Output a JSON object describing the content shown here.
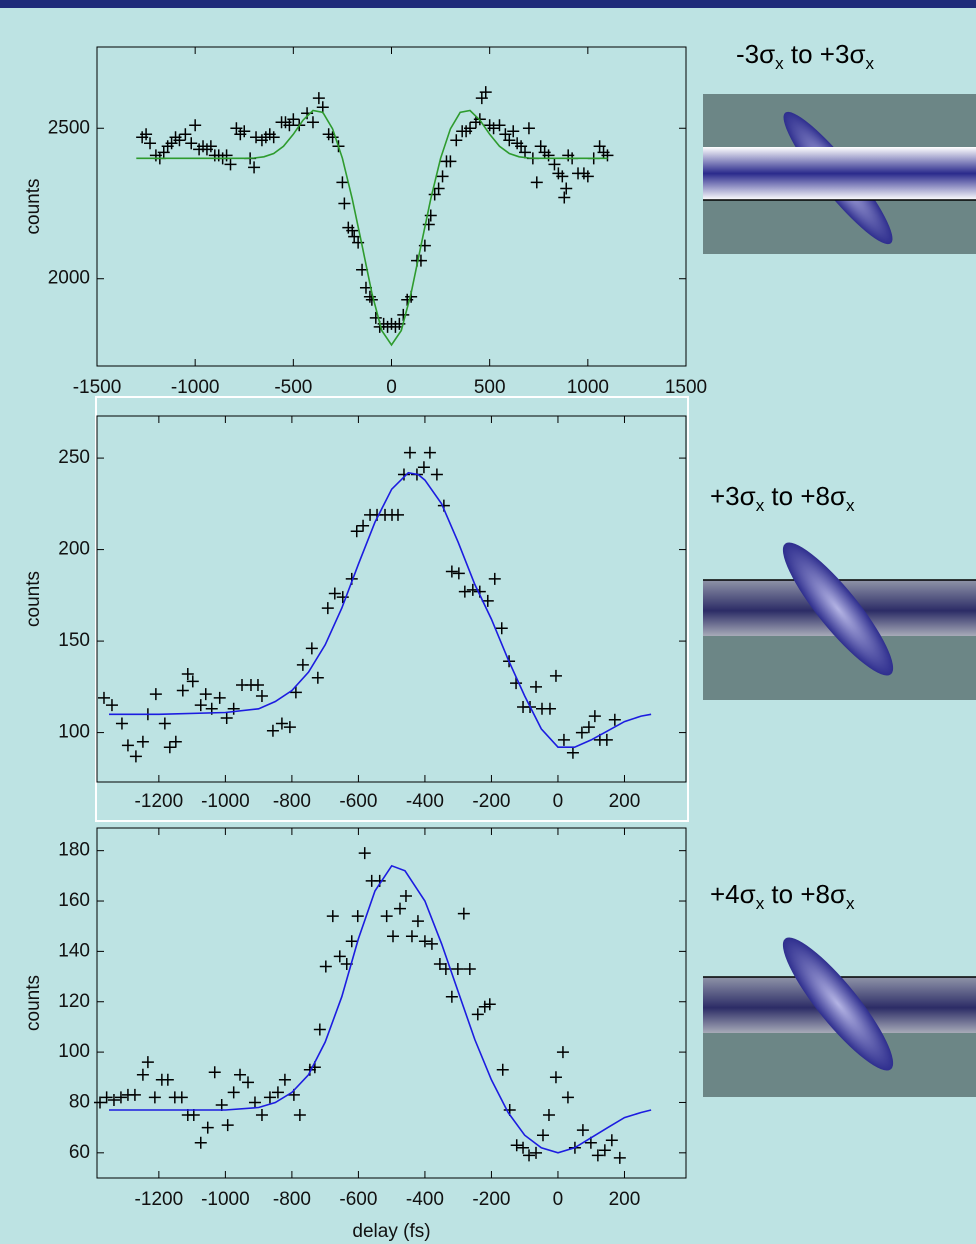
{
  "chart_data": [
    {
      "type": "scatter",
      "ylabel": "counts",
      "xlim": [
        -1500,
        1500
      ],
      "ylim": [
        1710,
        2770
      ],
      "xticks": [
        -1500,
        -1000,
        -500,
        0,
        500,
        1000,
        1500
      ],
      "yticks": [
        2000,
        2500
      ],
      "series": [
        {
          "marker": "+",
          "color": "#000000",
          "x": [
            -1270,
            -1250,
            -1230,
            -1200,
            -1180,
            -1160,
            -1140,
            -1120,
            -1100,
            -1080,
            -1050,
            -1020,
            -1000,
            -980,
            -960,
            -940,
            -920,
            -900,
            -880,
            -860,
            -840,
            -820,
            -790,
            -770,
            -750,
            -720,
            -700,
            -690,
            -660,
            -640,
            -620,
            -600,
            -560,
            -540,
            -520,
            -500,
            -470,
            -430,
            -400,
            -370,
            -350,
            -320,
            -300,
            -270,
            -250,
            -240,
            -220,
            -200,
            -190,
            -170,
            -150,
            -130,
            -110,
            -100,
            -80,
            -60,
            -40,
            -20,
            0,
            20,
            40,
            60,
            80,
            100,
            130,
            150,
            170,
            190,
            200,
            220,
            240,
            260,
            280,
            300,
            330,
            360,
            380,
            400,
            430,
            450,
            460,
            480,
            500,
            520,
            550,
            580,
            600,
            620,
            640,
            660,
            680,
            700,
            720,
            740,
            760,
            780,
            800,
            830,
            850,
            870,
            880,
            890,
            900,
            920,
            950,
            980,
            1000,
            1030,
            1060,
            1080,
            1100
          ],
          "values": [
            2470,
            2480,
            2450,
            2410,
            2400,
            2420,
            2440,
            2450,
            2470,
            2460,
            2480,
            2450,
            2510,
            2430,
            2440,
            2430,
            2440,
            2410,
            2410,
            2400,
            2410,
            2380,
            2500,
            2480,
            2490,
            2400,
            2370,
            2470,
            2460,
            2470,
            2480,
            2470,
            2520,
            2520,
            2510,
            2530,
            2510,
            2550,
            2520,
            2600,
            2570,
            2480,
            2470,
            2440,
            2320,
            2250,
            2170,
            2160,
            2140,
            2120,
            2030,
            1970,
            1940,
            1930,
            1870,
            1840,
            1850,
            1840,
            1850,
            1840,
            1850,
            1880,
            1930,
            1940,
            2060,
            2060,
            2110,
            2180,
            2210,
            2280,
            2300,
            2340,
            2390,
            2390,
            2460,
            2490,
            2490,
            2500,
            2520,
            2530,
            2600,
            2620,
            2510,
            2500,
            2510,
            2480,
            2460,
            2490,
            2450,
            2440,
            2420,
            2500,
            2400,
            2320,
            2440,
            2420,
            2410,
            2380,
            2350,
            2340,
            2270,
            2300,
            2410,
            2400,
            2350,
            2350,
            2340,
            2400,
            2440,
            2420,
            2410
          ]
        },
        {
          "line": true,
          "color": "#2e9b2e",
          "x": [
            -1300,
            -1250,
            -1200,
            -1150,
            -1100,
            -1050,
            -1000,
            -950,
            -900,
            -850,
            -800,
            -750,
            -700,
            -650,
            -600,
            -550,
            -500,
            -450,
            -400,
            -350,
            -300,
            -250,
            -200,
            -150,
            -100,
            -50,
            0,
            50,
            100,
            150,
            200,
            250,
            300,
            350,
            400,
            450,
            500,
            550,
            600,
            650,
            700,
            750,
            800,
            850,
            900,
            950,
            1000,
            1050,
            1100
          ],
          "values": [
            2400,
            2400,
            2400,
            2400,
            2400,
            2400,
            2400,
            2400,
            2400,
            2400,
            2400,
            2400,
            2401,
            2405,
            2416,
            2440,
            2480,
            2527,
            2559,
            2553,
            2498,
            2400,
            2266,
            2110,
            1952,
            1828,
            1780,
            1828,
            1952,
            2110,
            2266,
            2400,
            2498,
            2553,
            2559,
            2527,
            2480,
            2440,
            2416,
            2405,
            2401,
            2400,
            2400,
            2400,
            2400,
            2400,
            2400,
            2400,
            2400
          ]
        }
      ]
    },
    {
      "type": "scatter",
      "ylabel": "counts",
      "xlim": [
        -1386,
        385
      ],
      "ylim": [
        73,
        273
      ],
      "xticks": [
        -1200,
        -1000,
        -800,
        -600,
        -400,
        -200,
        0,
        200
      ],
      "yticks": [
        100,
        150,
        200,
        250
      ],
      "series": [
        {
          "marker": "+",
          "color": "#000000",
          "x": [
            -1365,
            -1341,
            -1311,
            -1293,
            -1269,
            -1248,
            -1233,
            -1209,
            -1182,
            -1167,
            -1149,
            -1128,
            -1113,
            -1098,
            -1074,
            -1059,
            -1041,
            -1017,
            -996,
            -975,
            -950,
            -923,
            -902,
            -890,
            -857,
            -830,
            -806,
            -788,
            -767,
            -740,
            -722,
            -692,
            -671,
            -647,
            -620,
            -605,
            -586,
            -565,
            -544,
            -520,
            -499,
            -481,
            -463,
            -445,
            -424,
            -403,
            -385,
            -364,
            -343,
            -319,
            -298,
            -280,
            -256,
            -235,
            -211,
            -190,
            -169,
            -147,
            -126,
            -105,
            -84,
            -66,
            -48,
            -24,
            -6,
            18,
            45,
            72,
            93,
            111,
            126,
            147,
            171
          ],
          "values": [
            119,
            115,
            105,
            93,
            87,
            95,
            110,
            121,
            105,
            92,
            95,
            123,
            132,
            128,
            115,
            121,
            113,
            119,
            108,
            113,
            126,
            126,
            126,
            120,
            101,
            105,
            103,
            122,
            137,
            146,
            130,
            168,
            176,
            174,
            184,
            210,
            213,
            219,
            219,
            219,
            219,
            219,
            241,
            253,
            241,
            245,
            253,
            241,
            224,
            188,
            187,
            177,
            178,
            177,
            172,
            184,
            157,
            139,
            127,
            114,
            114,
            125,
            113,
            113,
            131,
            96,
            89,
            100,
            103,
            109,
            96,
            96,
            107
          ]
        },
        {
          "line": true,
          "color": "#1c1ce0",
          "x": [
            -1350,
            -1200,
            -1000,
            -900,
            -850,
            -800,
            -750,
            -700,
            -650,
            -600,
            -550,
            -500,
            -450,
            -420,
            -400,
            -350,
            -300,
            -250,
            -200,
            -150,
            -100,
            -50,
            0,
            50,
            100,
            150,
            200,
            250,
            280
          ],
          "values": [
            110,
            110,
            111,
            113,
            117,
            123,
            133,
            148,
            168,
            192,
            215,
            233,
            242,
            241,
            238,
            225,
            204,
            181,
            162,
            140,
            120,
            102,
            92,
            92,
            96,
            101,
            106,
            109,
            110
          ]
        }
      ]
    },
    {
      "type": "scatter",
      "ylabel": "counts",
      "xlabel": "delay (fs)",
      "xlim": [
        -1386,
        385
      ],
      "ylim": [
        50,
        189
      ],
      "xticks": [
        -1200,
        -1000,
        -800,
        -600,
        -400,
        -200,
        0,
        200
      ],
      "yticks": [
        60,
        80,
        100,
        120,
        140,
        160,
        180
      ],
      "series": [
        {
          "marker": "+",
          "color": "#000000",
          "x": [
            -1377,
            -1357,
            -1335,
            -1314,
            -1293,
            -1272,
            -1248,
            -1233,
            -1212,
            -1191,
            -1173,
            -1152,
            -1131,
            -1113,
            -1095,
            -1074,
            -1053,
            -1032,
            -1011,
            -993,
            -975,
            -956,
            -932,
            -911,
            -890,
            -866,
            -842,
            -821,
            -794,
            -776,
            -746,
            -731,
            -716,
            -698,
            -677,
            -656,
            -635,
            -620,
            -602,
            -581,
            -560,
            -536,
            -515,
            -496,
            -475,
            -457,
            -439,
            -421,
            -400,
            -379,
            -355,
            -337,
            -319,
            -301,
            -283,
            -265,
            -241,
            -220,
            -205,
            -166,
            -145,
            -124,
            -105,
            -87,
            -66,
            -45,
            -27,
            -6,
            15,
            30,
            51,
            75,
            99,
            120,
            141,
            162,
            186
          ],
          "values": [
            80,
            82,
            81,
            82,
            83,
            83,
            91,
            96,
            82,
            89,
            89,
            82,
            82,
            75,
            75,
            64,
            70,
            92,
            79,
            71,
            84,
            91,
            88,
            80,
            75,
            82,
            84,
            89,
            83,
            75,
            93,
            94,
            109,
            134,
            154,
            138,
            135,
            144,
            154,
            179,
            168,
            168,
            154,
            146,
            157,
            162,
            146,
            152,
            144,
            143,
            135,
            133,
            122,
            133,
            155,
            133,
            115,
            118,
            119,
            93,
            77,
            63,
            62,
            59,
            60,
            67,
            75,
            90,
            100,
            82,
            62,
            69,
            64,
            59,
            61,
            65,
            58
          ]
        },
        {
          "line": true,
          "color": "#1c1ce0",
          "x": [
            -1350,
            -1200,
            -1000,
            -900,
            -850,
            -800,
            -750,
            -700,
            -650,
            -600,
            -550,
            -500,
            -460,
            -400,
            -350,
            -300,
            -250,
            -200,
            -150,
            -100,
            -50,
            0,
            50,
            100,
            150,
            200,
            250,
            280
          ],
          "values": [
            77,
            77,
            77,
            78,
            80,
            84,
            91,
            104,
            122,
            145,
            164,
            174,
            172,
            160,
            143,
            124,
            105,
            89,
            76,
            67,
            62,
            60,
            62,
            66,
            70,
            74,
            76,
            77
          ]
        }
      ]
    }
  ],
  "illustrations": [
    {
      "label": [
        "-3σ",
        "x",
        " to +3σ",
        "x"
      ]
    },
    {
      "label": [
        "+3σ",
        "x",
        " to +8σ",
        "x"
      ]
    },
    {
      "label": [
        "+4σ",
        "x",
        " to +8σ",
        "x"
      ]
    }
  ]
}
